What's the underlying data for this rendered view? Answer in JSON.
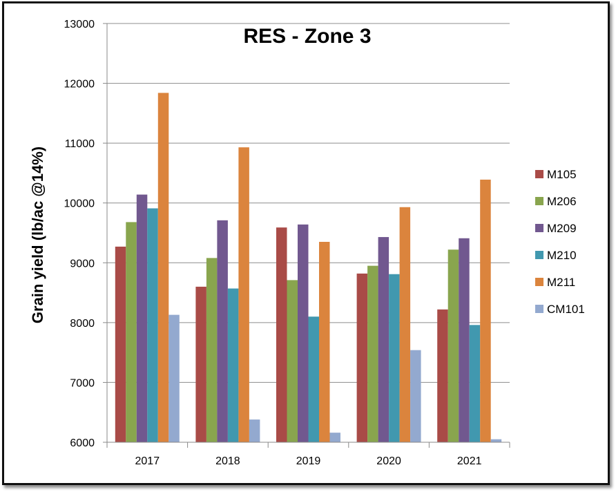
{
  "chart_data": {
    "type": "bar",
    "title": "RES - Zone 3",
    "xlabel": "",
    "ylabel": "Grain yield (lb/ac @14%)",
    "ylim": [
      6000,
      13000
    ],
    "yticks": [
      6000,
      7000,
      8000,
      9000,
      10000,
      11000,
      12000,
      13000
    ],
    "grid": "horizontal",
    "legend_position": "right",
    "categories": [
      "2017",
      "2018",
      "2019",
      "2020",
      "2021"
    ],
    "series": [
      {
        "name": "M105",
        "color": "#a94b47",
        "values": [
          9270,
          8600,
          9590,
          8820,
          8220
        ]
      },
      {
        "name": "M206",
        "color": "#89a54e",
        "values": [
          9680,
          9080,
          8710,
          8950,
          9220
        ]
      },
      {
        "name": "M209",
        "color": "#71588f",
        "values": [
          10140,
          9710,
          9640,
          9430,
          9410
        ]
      },
      {
        "name": "M210",
        "color": "#4198af",
        "values": [
          9910,
          8570,
          8100,
          8810,
          7960
        ]
      },
      {
        "name": "M211",
        "color": "#db843d",
        "values": [
          11840,
          10930,
          9350,
          9930,
          10390
        ]
      },
      {
        "name": "CM101",
        "color": "#93a9cf",
        "values": [
          8130,
          6380,
          6160,
          7540,
          6050
        ]
      }
    ]
  }
}
